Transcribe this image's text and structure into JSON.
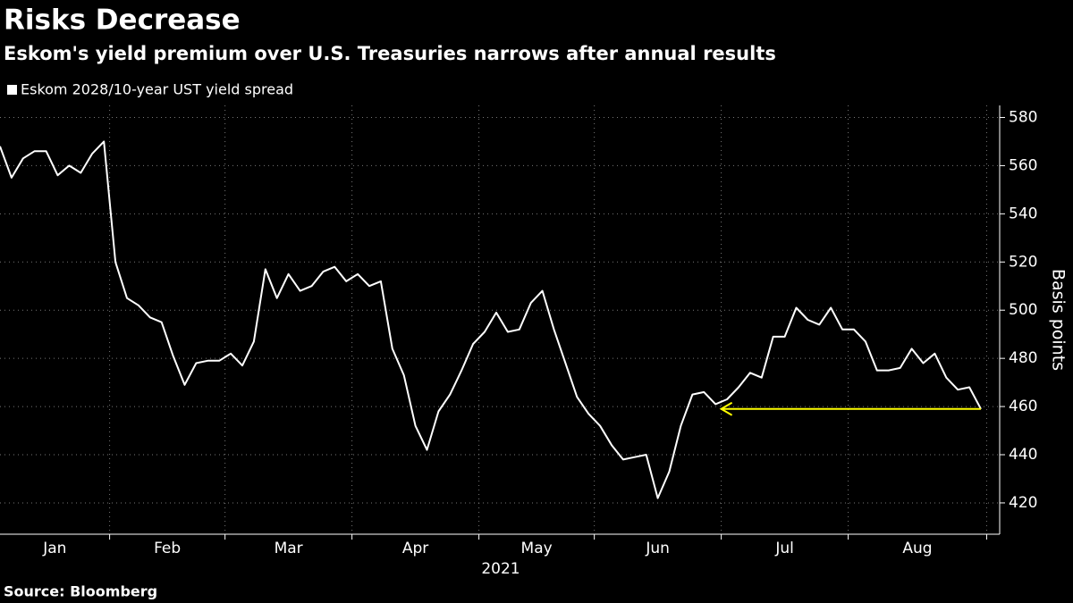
{
  "chart_data": {
    "type": "line",
    "title": "Risks Decrease",
    "subtitle": "Eskom's yield premium over U.S. Treasuries narrows after annual results",
    "source": "Source: Bloomberg",
    "x_label": "2021",
    "y_label": "Basis points",
    "categories": [
      "Jan",
      null,
      null,
      null,
      null,
      null,
      null,
      null,
      null,
      null,
      "Feb",
      null,
      null,
      null,
      null,
      null,
      null,
      null,
      null,
      null,
      "Mar",
      null,
      null,
      null,
      null,
      null,
      null,
      null,
      null,
      null,
      null,
      "Apr",
      null,
      null,
      null,
      null,
      null,
      null,
      null,
      null,
      null,
      null,
      "May",
      null,
      null,
      null,
      null,
      null,
      null,
      null,
      null,
      null,
      "Jun",
      null,
      null,
      null,
      null,
      null,
      null,
      null,
      null,
      null,
      null,
      "Jul",
      null,
      null,
      null,
      null,
      null,
      null,
      null,
      null,
      null,
      null,
      "Aug",
      null,
      null,
      null,
      null,
      null,
      null,
      null,
      null,
      null,
      null,
      null
    ],
    "series": [
      {
        "name": "Eskom 2028/10-year UST yield spread",
        "color": "#ffffff",
        "values": [
          568,
          555,
          563,
          566,
          566,
          556,
          560,
          557,
          565,
          570,
          520,
          505,
          502,
          497,
          495,
          481,
          469,
          478,
          479,
          479,
          482,
          477,
          487,
          517,
          505,
          515,
          508,
          510,
          516,
          518,
          512,
          515,
          510,
          512,
          484,
          473,
          452,
          442,
          458,
          465,
          475,
          486,
          491,
          499,
          491,
          492,
          503,
          508,
          492,
          478,
          464,
          457,
          452,
          444,
          438,
          439,
          440,
          422,
          433,
          452,
          465,
          466,
          461,
          463,
          468,
          474,
          472,
          489,
          489,
          501,
          496,
          494,
          501,
          492,
          492,
          487,
          475,
          475,
          476,
          484,
          478,
          482,
          472,
          467,
          468,
          459
        ]
      }
    ],
    "ylim": [
      407,
      585
    ],
    "yticks": [
      420,
      440,
      460,
      480,
      500,
      520,
      540,
      560,
      580
    ],
    "grid": true,
    "arrow_color": "#ffff00"
  }
}
